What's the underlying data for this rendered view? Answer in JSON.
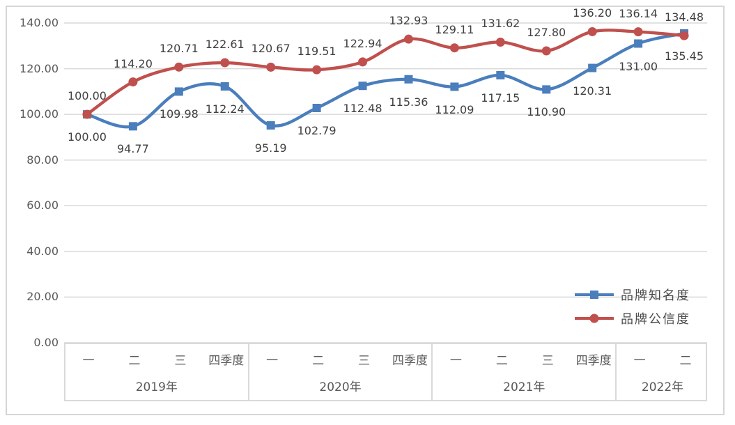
{
  "chart_data": {
    "type": "line",
    "title": "",
    "xlabel": "",
    "ylabel": "",
    "ylim": [
      0,
      140
    ],
    "grid": true,
    "smooth_lines": true,
    "legend_position": "right-lower-inside",
    "y_ticks": [
      "140.00",
      "120.00",
      "100.00",
      "80.00",
      "60.00",
      "40.00",
      "20.00",
      "0.00"
    ],
    "x_groups": [
      {
        "year": "2019年",
        "quarters": [
          "一",
          "二",
          "三",
          "四季度"
        ]
      },
      {
        "year": "2020年",
        "quarters": [
          "一",
          "二",
          "三",
          "四季度"
        ]
      },
      {
        "year": "2021年",
        "quarters": [
          "一",
          "二",
          "三",
          "四季度"
        ]
      },
      {
        "year": "2022年",
        "quarters": [
          "一",
          "二"
        ]
      }
    ],
    "series": [
      {
        "name": "品牌知名度",
        "color": "#4a7ebc",
        "marker": "square",
        "label_position": "below",
        "values": [
          100.0,
          94.77,
          109.98,
          112.24,
          95.19,
          102.79,
          112.48,
          115.36,
          112.09,
          117.15,
          110.9,
          120.31,
          131.0,
          135.45
        ]
      },
      {
        "name": "品牌公信度",
        "color": "#c0504d",
        "marker": "circle",
        "label_position": "above",
        "values": [
          100.0,
          114.2,
          120.71,
          122.61,
          120.67,
          119.51,
          122.94,
          132.93,
          129.11,
          131.62,
          127.8,
          136.2,
          136.14,
          134.48
        ]
      }
    ],
    "colors": {
      "gridline": "#d9d9d9",
      "axis_text": "#595959",
      "data_label_text": "#404040",
      "border": "#d6d6d6"
    }
  }
}
